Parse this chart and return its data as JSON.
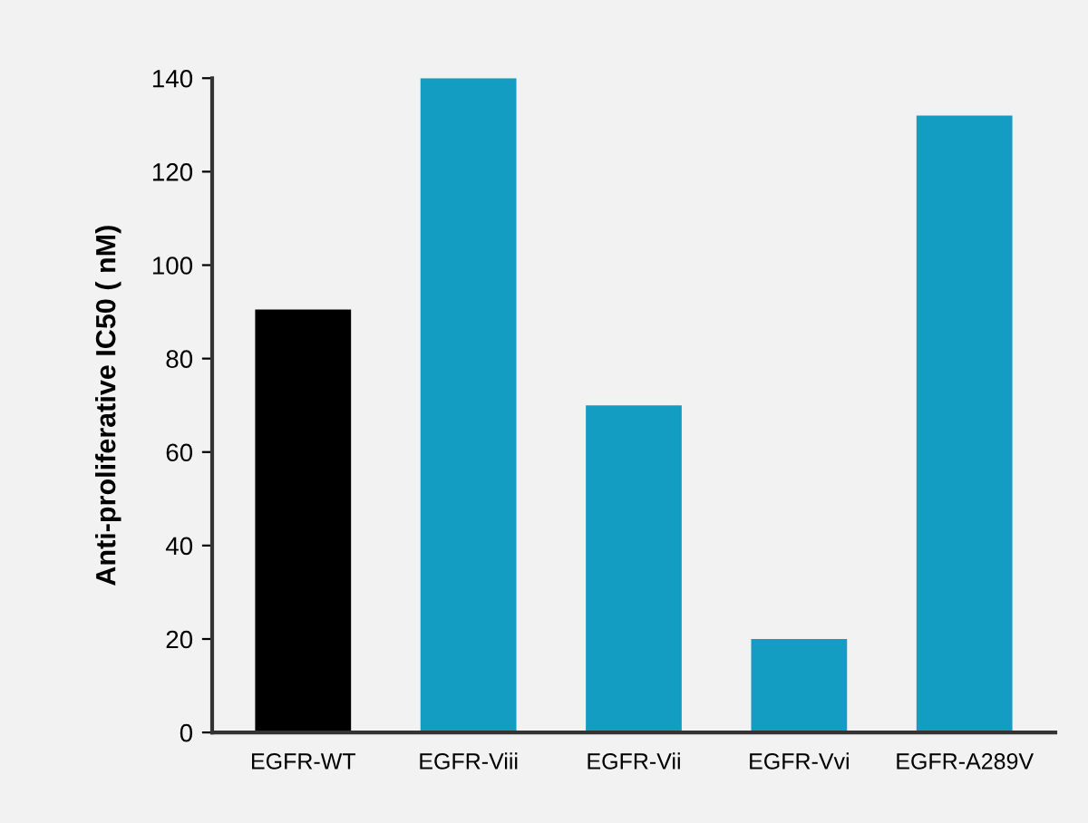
{
  "chart_data": {
    "type": "bar",
    "ylabel": "Anti-proliferative IC50 ( nM)",
    "categories": [
      "EGFR-WT",
      "EGFR-Viii",
      "EGFR-Vii",
      "EGFR-Vvi",
      "EGFR-A289V"
    ],
    "values": [
      90.5,
      140,
      70,
      20,
      132
    ],
    "colors": [
      "#000000",
      "#139dc2",
      "#139dc2",
      "#139dc2",
      "#139dc2"
    ],
    "ylim": [
      0,
      140
    ],
    "yticks": [
      0,
      20,
      40,
      60,
      80,
      100,
      120,
      140
    ],
    "grid": false
  }
}
